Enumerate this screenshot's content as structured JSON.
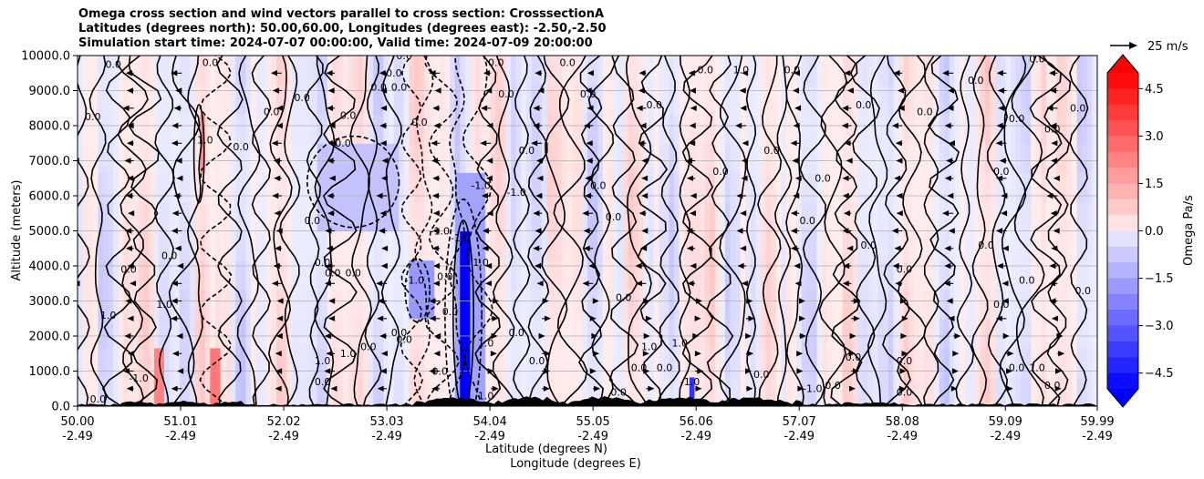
{
  "chart_data": {
    "type": "heatmap",
    "title_lines": [
      "Omega cross section and wind vectors parallel to cross section: CrosssectionA",
      "Latitudes (degrees north): 50.00,60.00, Longitudes (degrees east): -2.50,-2.50",
      "Simulation start time: 2024-07-07 00:00:00, Valid time: 2024-07-09 20:00:00"
    ],
    "xlabel_lines": [
      "Latitude (degrees N)",
      "Longitude (degrees E)"
    ],
    "ylabel": "Altitude (meters)",
    "ylim": [
      0,
      10000
    ],
    "xlim": [
      50.0,
      59.99
    ],
    "yticks": [
      {
        "value": 0,
        "label": "0.0"
      },
      {
        "value": 1000,
        "label": "1000.0"
      },
      {
        "value": 2000,
        "label": "2000.0"
      },
      {
        "value": 3000,
        "label": "3000.0"
      },
      {
        "value": 4000,
        "label": "4000.0"
      },
      {
        "value": 5000,
        "label": "5000.0"
      },
      {
        "value": 6000,
        "label": "6000.0"
      },
      {
        "value": 7000,
        "label": "7000.0"
      },
      {
        "value": 8000,
        "label": "8000.0"
      },
      {
        "value": 9000,
        "label": "9000.0"
      },
      {
        "value": 10000,
        "label": "10000.0"
      }
    ],
    "xticks": [
      {
        "value": 50.0,
        "lat": "50.00",
        "lon": "-2.49"
      },
      {
        "value": 51.01,
        "lat": "51.01",
        "lon": "-2.49"
      },
      {
        "value": 52.02,
        "lat": "52.02",
        "lon": "-2.49"
      },
      {
        "value": 53.03,
        "lat": "53.03",
        "lon": "-2.49"
      },
      {
        "value": 54.04,
        "lat": "54.04",
        "lon": "-2.49"
      },
      {
        "value": 55.05,
        "lat": "55.05",
        "lon": "-2.49"
      },
      {
        "value": 56.06,
        "lat": "56.06",
        "lon": "-2.49"
      },
      {
        "value": 57.07,
        "lat": "57.07",
        "lon": "-2.49"
      },
      {
        "value": 58.08,
        "lat": "58.08",
        "lon": "-2.49"
      },
      {
        "value": 59.09,
        "lat": "59.09",
        "lon": "-2.49"
      },
      {
        "value": 59.99,
        "lat": "59.99",
        "lon": "-2.49"
      }
    ],
    "grid": "horizontal",
    "colorbar": {
      "label": "Omega Pa/s",
      "range": [
        -5.0,
        5.0
      ],
      "levels": 20,
      "extend": "both",
      "ticks": [
        {
          "value": 4.5,
          "label": "4.5"
        },
        {
          "value": 3.0,
          "label": "3.0"
        },
        {
          "value": 1.5,
          "label": "1.5"
        },
        {
          "value": 0.0,
          "label": "0.0"
        },
        {
          "value": -1.5,
          "label": "−1.5"
        },
        {
          "value": -3.0,
          "label": "−3.0"
        },
        {
          "value": -4.5,
          "label": "−4.5"
        }
      ]
    },
    "quiver_key": {
      "label": "25 m/s",
      "speed": 25
    },
    "contour_levels": [
      -1.0,
      0.0,
      1.0
    ],
    "contour_labels": [
      {
        "text": "0.0",
        "lat": 50.35,
        "alt": 9650
      },
      {
        "text": "0.0",
        "lat": 50.15,
        "alt": 8150
      },
      {
        "text": "0.0",
        "lat": 51.3,
        "alt": 9700
      },
      {
        "text": "0.0",
        "lat": 51.6,
        "alt": 7300
      },
      {
        "text": "0.0",
        "lat": 51.9,
        "alt": 8300
      },
      {
        "text": "1.0",
        "lat": 51.25,
        "alt": 7500
      },
      {
        "text": "0.0",
        "lat": 50.9,
        "alt": 4200
      },
      {
        "text": "0.0",
        "lat": 50.5,
        "alt": 3800
      },
      {
        "text": "1.0",
        "lat": 50.85,
        "alt": 2800
      },
      {
        "text": "-1.0",
        "lat": 50.6,
        "alt": 700
      },
      {
        "text": "1.0",
        "lat": 50.3,
        "alt": 2500
      },
      {
        "text": "0.0",
        "lat": 50.2,
        "alt": 100
      },
      {
        "text": "1.0",
        "lat": 52.4,
        "alt": 1200
      },
      {
        "text": "0.0",
        "lat": 52.2,
        "alt": 8700
      },
      {
        "text": "0.0",
        "lat": 52.4,
        "alt": 4000
      },
      {
        "text": "0.0",
        "lat": 52.4,
        "alt": 600
      },
      {
        "text": "0.0",
        "lat": 52.6,
        "alt": 7400
      },
      {
        "text": "0.0",
        "lat": 52.65,
        "alt": 8200
      },
      {
        "text": "0.0",
        "lat": 52.3,
        "alt": 5200
      },
      {
        "text": "0.0",
        "lat": 52.5,
        "alt": 3700
      },
      {
        "text": "0.0",
        "lat": 52.7,
        "alt": 3700
      },
      {
        "text": "0.0",
        "lat": 53.6,
        "alt": 3600
      },
      {
        "text": "0.0",
        "lat": 52.85,
        "alt": 1600
      },
      {
        "text": "1.0",
        "lat": 52.65,
        "alt": 1400
      },
      {
        "text": "0.0",
        "lat": 52.95,
        "alt": 9000
      },
      {
        "text": "0.0",
        "lat": 53.1,
        "alt": 9400
      },
      {
        "text": "0.0",
        "lat": 53.2,
        "alt": 9900
      },
      {
        "text": "0.0",
        "lat": 53.15,
        "alt": 9000
      },
      {
        "text": "0.0",
        "lat": 53.35,
        "alt": 8000
      },
      {
        "text": "0.0",
        "lat": 53.15,
        "alt": 2000
      },
      {
        "text": "-1.0",
        "lat": 53.3,
        "alt": 3500
      },
      {
        "text": "0.0",
        "lat": 53.2,
        "alt": 1800
      },
      {
        "text": "0.0",
        "lat": 53.55,
        "alt": 900
      },
      {
        "text": "-1.0",
        "lat": 53.55,
        "alt": 4900
      },
      {
        "text": "-1.0",
        "lat": 53.75,
        "alt": 4700
      },
      {
        "text": "0.0",
        "lat": 53.65,
        "alt": 2600
      },
      {
        "text": "-1.0",
        "lat": 53.95,
        "alt": 6200
      },
      {
        "text": "1.0",
        "lat": 53.95,
        "alt": 4000
      },
      {
        "text": "0.0",
        "lat": 54.1,
        "alt": 9700
      },
      {
        "text": "0.0",
        "lat": 54.2,
        "alt": 8800
      },
      {
        "text": "0.0",
        "lat": 54.4,
        "alt": 7200
      },
      {
        "text": "1.0",
        "lat": 54.0,
        "alt": 1700
      },
      {
        "text": "0.0",
        "lat": 54.3,
        "alt": 2000
      },
      {
        "text": "1.0",
        "lat": 54.0,
        "alt": 200
      },
      {
        "text": "0.0",
        "lat": 54.5,
        "alt": 1200
      },
      {
        "text": "-1.0",
        "lat": 54.3,
        "alt": 6000
      },
      {
        "text": "0.0",
        "lat": 54.8,
        "alt": 9700
      },
      {
        "text": "0.0",
        "lat": 55.0,
        "alt": 8800
      },
      {
        "text": "0.0",
        "lat": 55.1,
        "alt": 6200
      },
      {
        "text": "0.0",
        "lat": 55.25,
        "alt": 5300
      },
      {
        "text": "0.0",
        "lat": 55.35,
        "alt": 3000
      },
      {
        "text": "1.0",
        "lat": 55.6,
        "alt": 1600
      },
      {
        "text": "0.0",
        "lat": 55.5,
        "alt": 1000
      },
      {
        "text": "0.0",
        "lat": 55.3,
        "alt": 300
      },
      {
        "text": "0.0",
        "lat": 55.75,
        "alt": 1000
      },
      {
        "text": "1.0",
        "lat": 55.9,
        "alt": 1700
      },
      {
        "text": "0.0",
        "lat": 55.65,
        "alt": 8500
      },
      {
        "text": "1.0",
        "lat": 56.5,
        "alt": 9500
      },
      {
        "text": "0.0",
        "lat": 56.15,
        "alt": 9500
      },
      {
        "text": "0.0",
        "lat": 56.3,
        "alt": 6600
      },
      {
        "text": "0.0",
        "lat": 56.8,
        "alt": 7200
      },
      {
        "text": "0.0",
        "lat": 56.7,
        "alt": 800
      },
      {
        "text": "-1.0",
        "lat": 56.0,
        "alt": 600
      },
      {
        "text": "0.0",
        "lat": 57.0,
        "alt": 9500
      },
      {
        "text": "0.0",
        "lat": 57.15,
        "alt": 5200
      },
      {
        "text": "0.0",
        "lat": 57.3,
        "alt": 6400
      },
      {
        "text": "0.0",
        "lat": 57.4,
        "alt": 500
      },
      {
        "text": "-1.0",
        "lat": 57.2,
        "alt": 400
      },
      {
        "text": "0.0",
        "lat": 57.7,
        "alt": 8500
      },
      {
        "text": "0.0",
        "lat": 57.75,
        "alt": 4500
      },
      {
        "text": "0.0",
        "lat": 57.6,
        "alt": 1300
      },
      {
        "text": "0.0",
        "lat": 58.1,
        "alt": 3800
      },
      {
        "text": "0.0",
        "lat": 58.3,
        "alt": 8300
      },
      {
        "text": "0.0",
        "lat": 58.1,
        "alt": 1200
      },
      {
        "text": "0.0",
        "lat": 58.1,
        "alt": 300
      },
      {
        "text": "0.0",
        "lat": 58.8,
        "alt": 9200
      },
      {
        "text": "0.0",
        "lat": 58.9,
        "alt": 4500
      },
      {
        "text": "0.0",
        "lat": 59.05,
        "alt": 6600
      },
      {
        "text": "0.0",
        "lat": 59.2,
        "alt": 8100
      },
      {
        "text": "0.0",
        "lat": 59.3,
        "alt": 3500
      },
      {
        "text": "0.0",
        "lat": 59.05,
        "alt": 2800
      },
      {
        "text": "0.0",
        "lat": 59.4,
        "alt": 9800
      },
      {
        "text": "0.0",
        "lat": 59.55,
        "alt": 7800
      },
      {
        "text": "0.0",
        "lat": 59.8,
        "alt": 8400
      },
      {
        "text": "0.0",
        "lat": 59.85,
        "alt": 3200
      },
      {
        "text": "1.0",
        "lat": 59.4,
        "alt": 1000
      },
      {
        "text": "0.0",
        "lat": 59.2,
        "alt": 1000
      },
      {
        "text": "0.0",
        "lat": 59.55,
        "alt": 500
      }
    ]
  }
}
